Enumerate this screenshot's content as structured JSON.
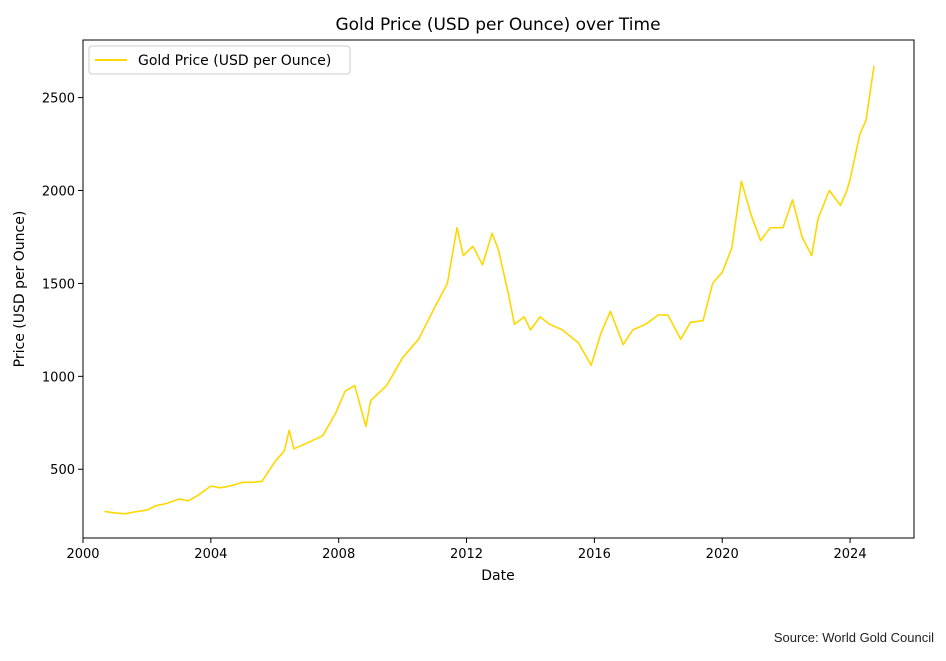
{
  "chart_data": {
    "type": "line",
    "title": "Gold Price (USD per Ounce) over Time",
    "xlabel": "Date",
    "ylabel": "Price (USD per Ounce)",
    "xlim": [
      2000,
      2026.0
    ],
    "ylim": [
      130,
      2810
    ],
    "x_ticks": [
      2000,
      2004,
      2008,
      2012,
      2016,
      2020,
      2024
    ],
    "y_ticks": [
      500,
      1000,
      1500,
      2000,
      2500
    ],
    "grid": false,
    "legend_position": "top-left",
    "series": [
      {
        "name": "Gold Price (USD per Ounce)",
        "color": "#FFD700",
        "x": [
          2000.67,
          2001.0,
          2001.3,
          2001.6,
          2002.0,
          2002.3,
          2002.6,
          2003.0,
          2003.3,
          2003.6,
          2004.0,
          2004.3,
          2004.6,
          2005.0,
          2005.3,
          2005.6,
          2006.0,
          2006.3,
          2006.45,
          2006.6,
          2007.0,
          2007.5,
          2007.9,
          2008.2,
          2008.5,
          2008.85,
          2009.0,
          2009.5,
          2010.0,
          2010.5,
          2011.0,
          2011.4,
          2011.7,
          2011.9,
          2012.2,
          2012.5,
          2012.8,
          2013.0,
          2013.3,
          2013.5,
          2013.8,
          2014.0,
          2014.3,
          2014.6,
          2015.0,
          2015.5,
          2015.9,
          2016.2,
          2016.5,
          2016.9,
          2017.2,
          2017.6,
          2018.0,
          2018.3,
          2018.7,
          2019.0,
          2019.4,
          2019.7,
          2020.0,
          2020.3,
          2020.6,
          2020.9,
          2021.2,
          2021.5,
          2021.9,
          2022.2,
          2022.5,
          2022.8,
          2023.0,
          2023.35,
          2023.7,
          2023.9,
          2024.0,
          2024.3,
          2024.5,
          2024.75
        ],
        "y": [
          273,
          265,
          260,
          270,
          280,
          305,
          315,
          340,
          330,
          360,
          410,
          400,
          410,
          430,
          430,
          435,
          540,
          600,
          710,
          610,
          640,
          680,
          800,
          920,
          950,
          730,
          870,
          950,
          1100,
          1200,
          1370,
          1500,
          1800,
          1650,
          1700,
          1600,
          1770,
          1680,
          1450,
          1280,
          1320,
          1250,
          1320,
          1280,
          1250,
          1180,
          1060,
          1230,
          1350,
          1170,
          1250,
          1280,
          1330,
          1330,
          1200,
          1290,
          1300,
          1500,
          1560,
          1690,
          2050,
          1870,
          1730,
          1800,
          1800,
          1950,
          1750,
          1650,
          1850,
          2000,
          1920,
          2000,
          2060,
          2300,
          2380,
          2670
        ]
      }
    ],
    "annotations": [
      "Source: World Gold Council"
    ]
  }
}
